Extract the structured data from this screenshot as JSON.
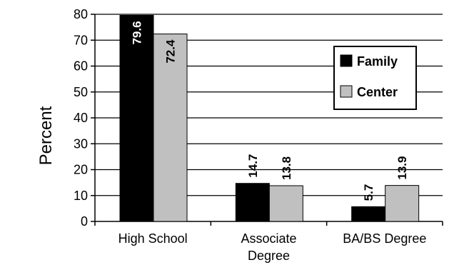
{
  "chart_data": {
    "type": "bar",
    "categories": [
      "High School",
      "Associate Degree",
      "BA/BS Degree"
    ],
    "category_lines": [
      [
        "High School"
      ],
      [
        "Associate",
        "Degree"
      ],
      [
        "BA/BS Degree"
      ]
    ],
    "series": [
      {
        "name": "Family",
        "values": [
          79.6,
          14.7,
          5.7
        ],
        "color": "#000000"
      },
      {
        "name": "Center",
        "values": [
          72.4,
          13.8,
          13.9
        ],
        "color": "#c0c0c0"
      }
    ],
    "ylabel": "Percent",
    "ylim": [
      0,
      80
    ],
    "yticks": [
      "0",
      "10",
      "20",
      "30",
      "40",
      "50",
      "60",
      "70",
      "80"
    ],
    "grid": true,
    "legend_position": "right"
  }
}
